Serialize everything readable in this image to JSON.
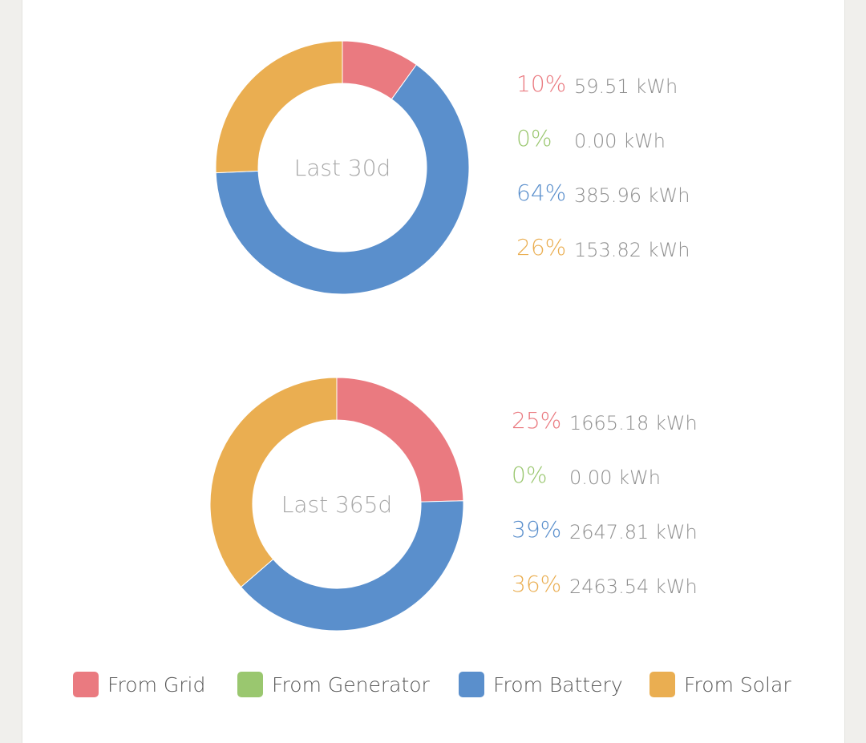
{
  "colors": {
    "grid": "#ea7a80",
    "generator": "#9ac76f",
    "battery": "#5a8fcc",
    "solar": "#eaae51"
  },
  "chart_data": [
    {
      "type": "pie",
      "title": "Last 30d",
      "categories": [
        "From Grid",
        "From Generator",
        "From Battery",
        "From Solar"
      ],
      "values": [
        59.51,
        0.0,
        385.96,
        153.82
      ],
      "unit": "kWh",
      "percent_labels": [
        "10%",
        "0%",
        "64%",
        "26%"
      ],
      "value_labels": [
        "59.51 kWh",
        "0.00 kWh",
        "385.96 kWh",
        "153.82 kWh"
      ]
    },
    {
      "type": "pie",
      "title": "Last 365d",
      "categories": [
        "From Grid",
        "From Generator",
        "From Battery",
        "From Solar"
      ],
      "values": [
        1665.18,
        0.0,
        2647.81,
        2463.54
      ],
      "unit": "kWh",
      "percent_labels": [
        "25%",
        "0%",
        "39%",
        "36%"
      ],
      "value_labels": [
        "1665.18 kWh",
        "0.00 kWh",
        "2647.81 kWh",
        "2463.54 kWh"
      ]
    }
  ],
  "legend": {
    "placement": "bottom",
    "items": [
      {
        "label": "From Grid",
        "color": "#ea7a80"
      },
      {
        "label": "From Generator",
        "color": "#9ac76f"
      },
      {
        "label": "From Battery",
        "color": "#5a8fcc"
      },
      {
        "label": "From Solar",
        "color": "#eaae51"
      }
    ]
  }
}
